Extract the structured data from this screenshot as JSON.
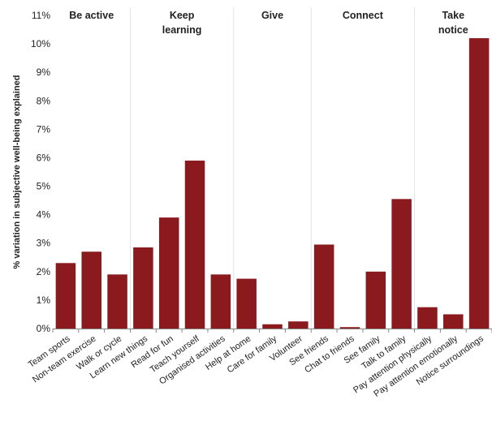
{
  "chart_data": {
    "type": "bar",
    "title": "",
    "xlabel": "",
    "ylabel": "% variation in subjective well-being explained",
    "ylim": [
      0,
      11
    ],
    "yticks": [
      "0%",
      "1%",
      "2%",
      "3%",
      "4%",
      "5%",
      "6%",
      "7%",
      "8%",
      "9%",
      "10%",
      "11%"
    ],
    "grid": false,
    "bar_color": "#8B1A1F",
    "groups": [
      {
        "label_lines": [
          "Be active"
        ],
        "start": 0,
        "end": 2
      },
      {
        "label_lines": [
          "Keep",
          "learning"
        ],
        "start": 3,
        "end": 6
      },
      {
        "label_lines": [
          "Give"
        ],
        "start": 7,
        "end": 9
      },
      {
        "label_lines": [
          "Connect"
        ],
        "start": 10,
        "end": 13
      },
      {
        "label_lines": [
          "Take",
          "notice"
        ],
        "start": 14,
        "end": 16
      }
    ],
    "categories": [
      "Team sports",
      "Non-team exercise",
      "Walk or cycle",
      "Learn new things",
      "Read for fun",
      "Teach yourself",
      "Organised activities",
      "Help at home",
      "Care for family",
      "Volunteer",
      "See friends",
      "Chat to friends",
      "See family",
      "Talk to family",
      "Pay attention physically",
      "Pay attention emotionally",
      "Notice surroundings"
    ],
    "values": [
      2.3,
      2.7,
      1.9,
      2.85,
      3.9,
      5.9,
      1.9,
      1.75,
      0.15,
      0.25,
      2.95,
      0.05,
      2.0,
      4.55,
      0.75,
      0.5,
      10.2
    ]
  }
}
